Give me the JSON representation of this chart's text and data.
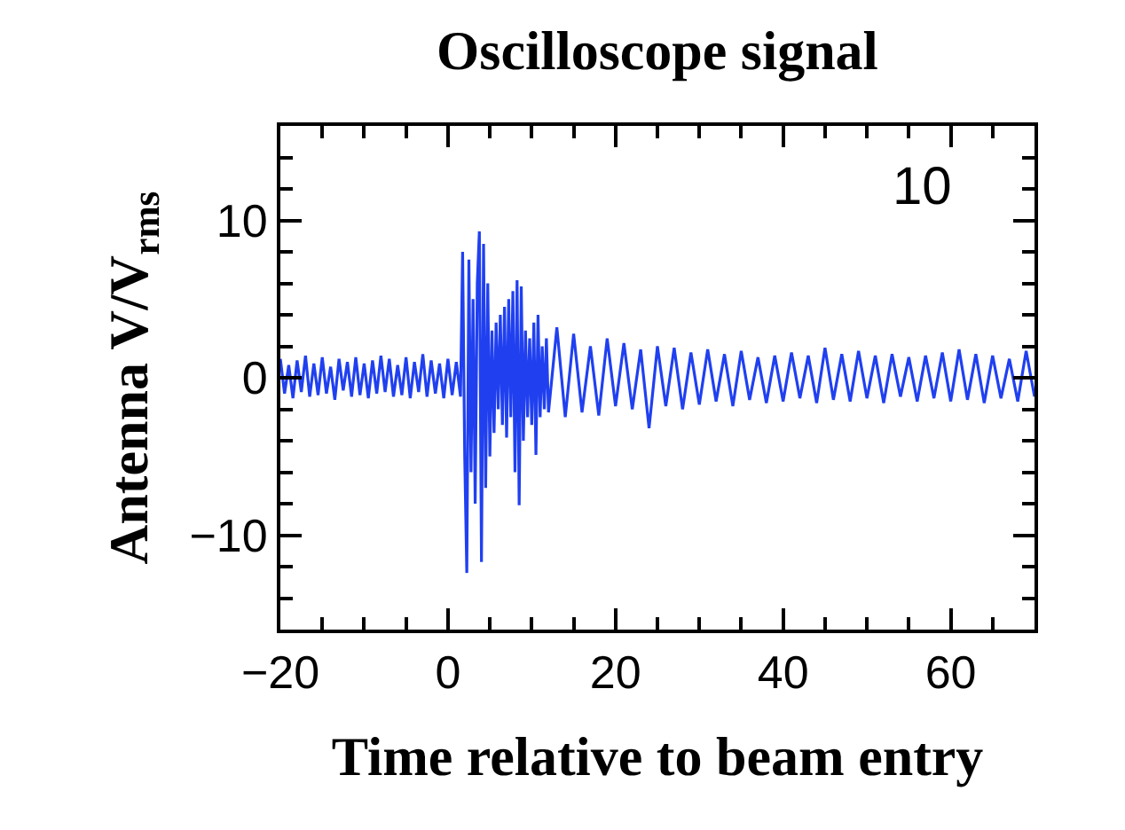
{
  "chart_data": {
    "type": "line",
    "title": "Oscilloscope signal",
    "xlabel": "Time relative to beam entry",
    "ylabel": "Antenna V/V$_{rms}$",
    "annotations": [
      "10"
    ],
    "xlim": [
      -20,
      70
    ],
    "ylim": [
      -16,
      16
    ],
    "xticks": [
      -20,
      {
        "value": -15,
        "label": null
      },
      {
        "value": -10,
        "label": null
      },
      {
        "value": -5,
        "label": null
      },
      0,
      {
        "value": 5,
        "label": null
      },
      {
        "value": 10,
        "label": null
      },
      {
        "value": 15,
        "label": null
      },
      20,
      {
        "value": 25,
        "label": null
      },
      {
        "value": 30,
        "label": null
      },
      {
        "value": 35,
        "label": null
      },
      40,
      {
        "value": 45,
        "label": null
      },
      {
        "value": 50,
        "label": null
      },
      {
        "value": 55,
        "label": null
      },
      60,
      {
        "value": 65,
        "label": null
      }
    ],
    "yticks": [
      {
        "value": -14,
        "label": null
      },
      {
        "value": -12,
        "label": null
      },
      -10,
      {
        "value": -8,
        "label": null
      },
      {
        "value": -6,
        "label": null
      },
      {
        "value": -4,
        "label": null
      },
      {
        "value": -2,
        "label": null
      },
      0,
      {
        "value": 2,
        "label": null
      },
      {
        "value": 4,
        "label": null
      },
      {
        "value": 6,
        "label": null
      },
      {
        "value": 8,
        "label": null
      },
      10,
      {
        "value": 12,
        "label": null
      },
      {
        "value": 14,
        "label": null
      }
    ],
    "marker": "none",
    "line_style": "solid",
    "series": [
      {
        "color": "#2040f0",
        "x": [
          -20,
          -19.5,
          -19,
          -18.5,
          -18,
          -17.5,
          -17,
          -16.5,
          -16,
          -15.5,
          -15,
          -14.5,
          -14,
          -13.5,
          -13,
          -12.5,
          -12,
          -11.5,
          -11,
          -10.5,
          -10,
          -9.5,
          -9,
          -8.5,
          -8,
          -7.5,
          -7,
          -6.5,
          -6,
          -5.5,
          -5,
          -4.5,
          -4,
          -3.5,
          -3,
          -2.5,
          -2,
          -1.5,
          -1,
          -0.5,
          0,
          0.5,
          1,
          1.5,
          1.75,
          2,
          2.25,
          2.5,
          2.75,
          3,
          3.25,
          3.5,
          3.75,
          4,
          4.25,
          4.5,
          4.75,
          5,
          5.25,
          5.5,
          5.75,
          6,
          6.25,
          6.5,
          6.75,
          7,
          7.25,
          7.5,
          7.75,
          8,
          8.25,
          8.5,
          8.75,
          9,
          9.25,
          9.5,
          9.75,
          10,
          10.25,
          10.5,
          10.75,
          11,
          11.25,
          11.5,
          11.75,
          12,
          13,
          14,
          15,
          16,
          17,
          18,
          19,
          20,
          21,
          22,
          23,
          24,
          25,
          26,
          27,
          28,
          29,
          30,
          31,
          32,
          33,
          34,
          35,
          36,
          37,
          38,
          39,
          40,
          41,
          42,
          43,
          44,
          45,
          46,
          47,
          48,
          49,
          50,
          51,
          52,
          53,
          54,
          55,
          56,
          57,
          58,
          59,
          60,
          61,
          62,
          63,
          64,
          65,
          66,
          67,
          68,
          69,
          70
        ],
        "values": [
          1.2,
          -1.0,
          0.8,
          -1.3,
          1.1,
          -0.9,
          1.4,
          -1.2,
          0.9,
          -1.1,
          1.3,
          -1.0,
          0.7,
          -1.4,
          1.2,
          -0.8,
          1.0,
          -1.2,
          1.3,
          -1.1,
          0.9,
          -1.3,
          1.1,
          -1.0,
          1.4,
          -0.9,
          1.2,
          -1.2,
          0.8,
          -1.1,
          1.3,
          -1.3,
          1.0,
          -0.9,
          1.5,
          -1.2,
          1.1,
          -1.0,
          0.9,
          -1.3,
          1.2,
          -1.1,
          1.0,
          -1.2,
          8.0,
          -5,
          -12.4,
          7.5,
          -6,
          5,
          -8,
          6,
          9.3,
          -11.7,
          8.5,
          -7,
          6,
          -5,
          3,
          -3.5,
          3.5,
          -2,
          4,
          -3,
          4.5,
          -3.8,
          5,
          -2.5,
          5.5,
          -6,
          6.2,
          -8.1,
          5.8,
          -4,
          3,
          -2.5,
          2.5,
          -3,
          3.5,
          -4.9,
          4.0,
          -2.5,
          2,
          -2,
          2.5,
          -2.2,
          3.2,
          -2.5,
          2.8,
          -2.2,
          2.0,
          -2.4,
          2.5,
          -1.8,
          2.2,
          -2.0,
          1.8,
          -3.2,
          2.0,
          -1.8,
          1.9,
          -2.0,
          1.6,
          -1.7,
          1.8,
          -1.5,
          1.5,
          -1.8,
          1.7,
          -1.4,
          1.3,
          -1.6,
          1.4,
          -1.5,
          1.6,
          -1.3,
          1.4,
          -1.6,
          1.9,
          -1.4,
          1.5,
          -1.5,
          1.7,
          -1.3,
          1.4,
          -1.6,
          1.5,
          -1.2,
          1.3,
          -1.5,
          1.4,
          -1.3,
          1.6,
          -1.5,
          1.8,
          -1.4,
          1.5,
          -1.6,
          1.4,
          -1.3,
          1.2,
          -1.5,
          1.7,
          -1.2
        ]
      }
    ]
  }
}
